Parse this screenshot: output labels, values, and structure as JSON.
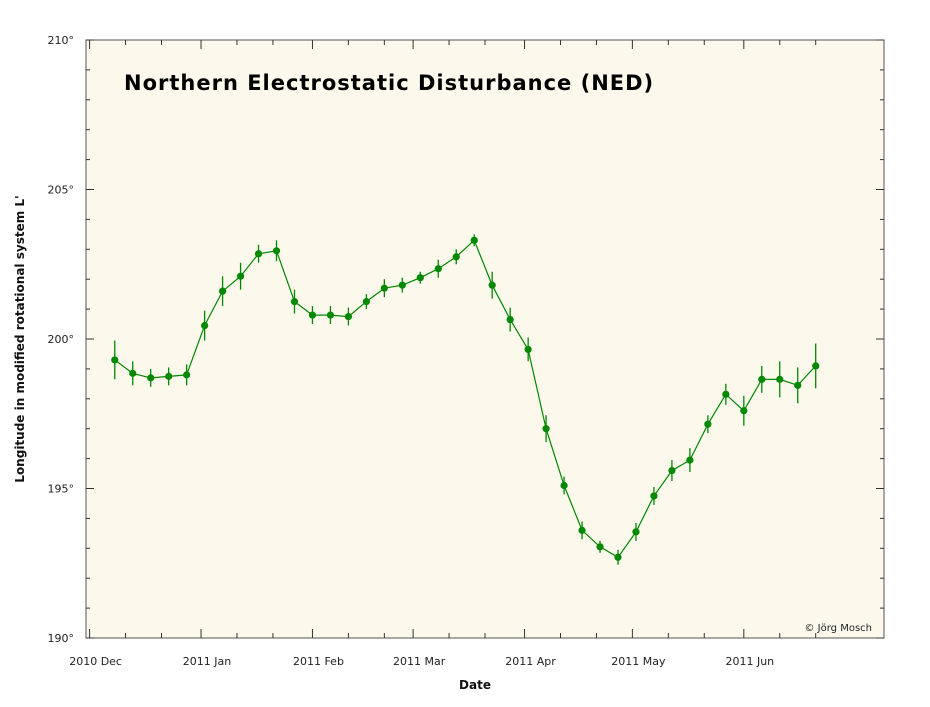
{
  "chart_data": {
    "type": "line",
    "title": "Northern Electrostatic Disturbance (NED)",
    "xlabel": "Date",
    "ylabel": "Longitude in modified rotational system L'",
    "credit": "© Jörg Mosch",
    "ylim": [
      190,
      210
    ],
    "yticks": [
      "190°",
      "195°",
      "200°",
      "205°",
      "210°"
    ],
    "xlim": [
      "2010-11-30",
      "2011-07-10"
    ],
    "xticks": [
      {
        "date": "2010-12-01",
        "label": "2010 Dec"
      },
      {
        "date": "2011-01-01",
        "label": "2011 Jan"
      },
      {
        "date": "2011-02-01",
        "label": "2011 Feb"
      },
      {
        "date": "2011-03-01",
        "label": "2011 Mar"
      },
      {
        "date": "2011-04-01",
        "label": "2011 Apr"
      },
      {
        "date": "2011-05-01",
        "label": "2011 May"
      },
      {
        "date": "2011-06-01",
        "label": "2011 Jun"
      }
    ],
    "series_color": "#008800",
    "plot_background": "#fdf8ec",
    "series": [
      {
        "x": [
          "2010-12-08",
          "2010-12-13",
          "2010-12-18",
          "2010-12-23",
          "2010-12-28",
          "2011-01-02",
          "2011-01-07",
          "2011-01-12",
          "2011-01-17",
          "2011-01-22",
          "2011-01-27",
          "2011-02-01",
          "2011-02-06",
          "2011-02-11",
          "2011-02-16",
          "2011-02-21",
          "2011-02-26",
          "2011-03-03",
          "2011-03-08",
          "2011-03-13",
          "2011-03-18",
          "2011-03-23",
          "2011-03-28",
          "2011-04-02",
          "2011-04-07",
          "2011-04-12",
          "2011-04-17",
          "2011-04-22",
          "2011-04-27",
          "2011-05-02",
          "2011-05-07",
          "2011-05-12",
          "2011-05-17",
          "2011-05-22",
          "2011-05-27",
          "2011-06-01",
          "2011-06-06",
          "2011-06-11",
          "2011-06-16",
          "2011-06-21"
        ],
        "y": [
          199.3,
          198.85,
          198.7,
          198.75,
          198.8,
          200.45,
          201.6,
          202.1,
          202.85,
          202.95,
          201.25,
          200.8,
          200.8,
          200.75,
          201.25,
          201.7,
          201.8,
          202.05,
          202.35,
          202.75,
          203.3,
          201.8,
          200.65,
          199.65,
          197.0,
          195.1,
          193.6,
          193.05,
          192.7,
          193.55,
          194.75,
          195.6,
          195.95,
          197.15,
          198.15,
          197.6,
          198.65,
          198.65,
          198.45,
          199.1
        ],
        "yerr": [
          0.65,
          0.4,
          0.3,
          0.3,
          0.35,
          0.5,
          0.5,
          0.45,
          0.3,
          0.35,
          0.4,
          0.3,
          0.3,
          0.3,
          0.25,
          0.3,
          0.25,
          0.2,
          0.3,
          0.25,
          0.2,
          0.45,
          0.4,
          0.4,
          0.45,
          0.3,
          0.3,
          0.2,
          0.25,
          0.3,
          0.3,
          0.35,
          0.4,
          0.3,
          0.35,
          0.5,
          0.45,
          0.6,
          0.6,
          0.75
        ]
      }
    ]
  }
}
